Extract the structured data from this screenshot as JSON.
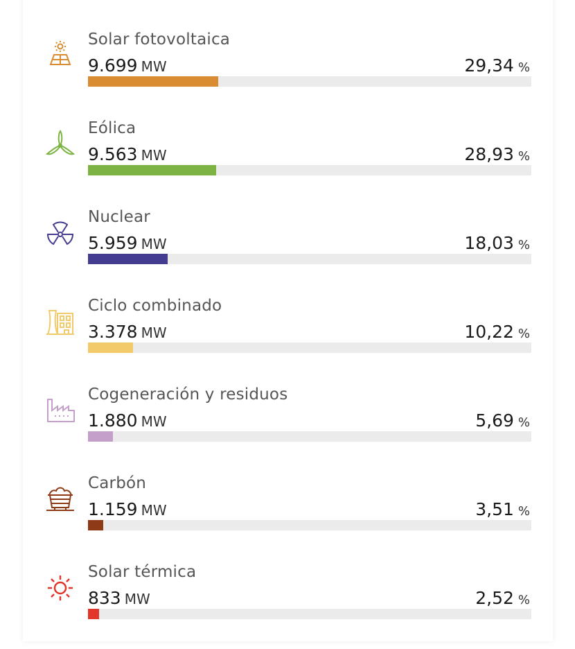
{
  "items": [
    {
      "label": "Solar fotovoltaica",
      "value": "9.699",
      "unit": "MW",
      "percent": "29,34",
      "percent_unit": "%",
      "share": 29.34,
      "color": "#d98c31",
      "icon": "solar-panel-icon"
    },
    {
      "label": "Eólica",
      "value": "9.563",
      "unit": "MW",
      "percent": "28,93",
      "percent_unit": "%",
      "share": 28.93,
      "color": "#7cb342",
      "icon": "wind-turbine-icon"
    },
    {
      "label": "Nuclear",
      "value": "5.959",
      "unit": "MW",
      "percent": "18,03",
      "percent_unit": "%",
      "share": 18.03,
      "color": "#433c8f",
      "icon": "nuclear-icon"
    },
    {
      "label": "Ciclo combinado",
      "value": "3.378",
      "unit": "MW",
      "percent": "10,22",
      "percent_unit": "%",
      "share": 10.22,
      "color": "#f3ca6a",
      "icon": "power-plant-icon"
    },
    {
      "label": "Cogeneración y residuos",
      "value": "1.880",
      "unit": "MW",
      "percent": "5,69",
      "percent_unit": "%",
      "share": 5.69,
      "color": "#c39fc9",
      "icon": "factory-icon"
    },
    {
      "label": "Carbón",
      "value": "1.159",
      "unit": "MW",
      "percent": "3,51",
      "percent_unit": "%",
      "share": 3.51,
      "color": "#8e3a17",
      "icon": "coal-cart-icon"
    },
    {
      "label": "Solar térmica",
      "value": "833",
      "unit": "MW",
      "percent": "2,52",
      "percent_unit": "%",
      "share": 2.52,
      "color": "#e3362a",
      "icon": "sun-icon"
    }
  ]
}
